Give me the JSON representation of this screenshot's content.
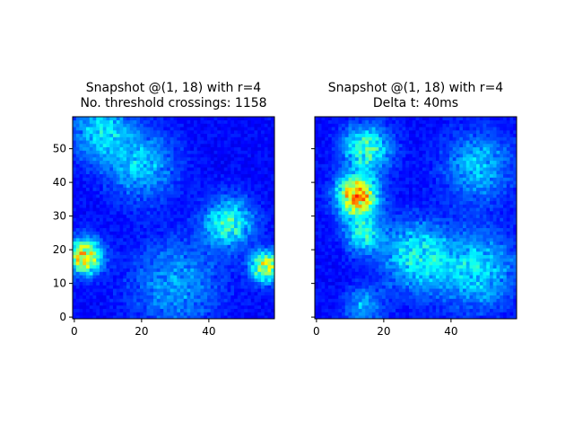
{
  "chart_data": [
    {
      "type": "heatmap",
      "title_line1": "Snapshot @(1, 18) with r=4",
      "title_line2": "No. threshold crossings: 1158",
      "colormap": "jet",
      "grid_size": [
        60,
        60
      ],
      "xlim": [
        0,
        59
      ],
      "ylim": [
        0,
        59
      ],
      "x_ticks": [
        0,
        20,
        40
      ],
      "y_ticks": [
        0,
        10,
        20,
        30,
        40,
        50
      ],
      "y_tick_labels_visible": true,
      "hotspots": [
        {
          "x": 3,
          "y": 18,
          "spread": 3.5,
          "intensity": 0.62
        },
        {
          "x": 57,
          "y": 15,
          "spread": 3,
          "intensity": 0.58
        },
        {
          "x": 46,
          "y": 28,
          "spread": 5,
          "intensity": 0.35
        },
        {
          "x": 20,
          "y": 45,
          "spread": 7,
          "intensity": 0.22
        },
        {
          "x": 8,
          "y": 55,
          "spread": 6,
          "intensity": 0.25
        },
        {
          "x": 30,
          "y": 10,
          "spread": 9,
          "intensity": 0.18
        }
      ]
    },
    {
      "type": "heatmap",
      "title_line1": "Snapshot @(1, 18) with r=4",
      "title_line2": "Delta t: 40ms",
      "colormap": "jet",
      "grid_size": [
        60,
        60
      ],
      "xlim": [
        0,
        59
      ],
      "ylim": [
        0,
        59
      ],
      "x_ticks": [
        0,
        20,
        40
      ],
      "y_ticks": [
        0,
        10,
        20,
        30,
        40,
        50
      ],
      "y_tick_labels_visible": false,
      "hotspots": [
        {
          "x": 12,
          "y": 36,
          "spread": 4,
          "intensity": 0.72
        },
        {
          "x": 15,
          "y": 50,
          "spread": 5,
          "intensity": 0.35
        },
        {
          "x": 14,
          "y": 25,
          "spread": 4,
          "intensity": 0.3
        },
        {
          "x": 30,
          "y": 18,
          "spread": 7,
          "intensity": 0.3
        },
        {
          "x": 48,
          "y": 14,
          "spread": 8,
          "intensity": 0.25
        },
        {
          "x": 48,
          "y": 45,
          "spread": 7,
          "intensity": 0.22
        },
        {
          "x": 14,
          "y": 3,
          "spread": 4,
          "intensity": 0.2
        }
      ]
    }
  ]
}
